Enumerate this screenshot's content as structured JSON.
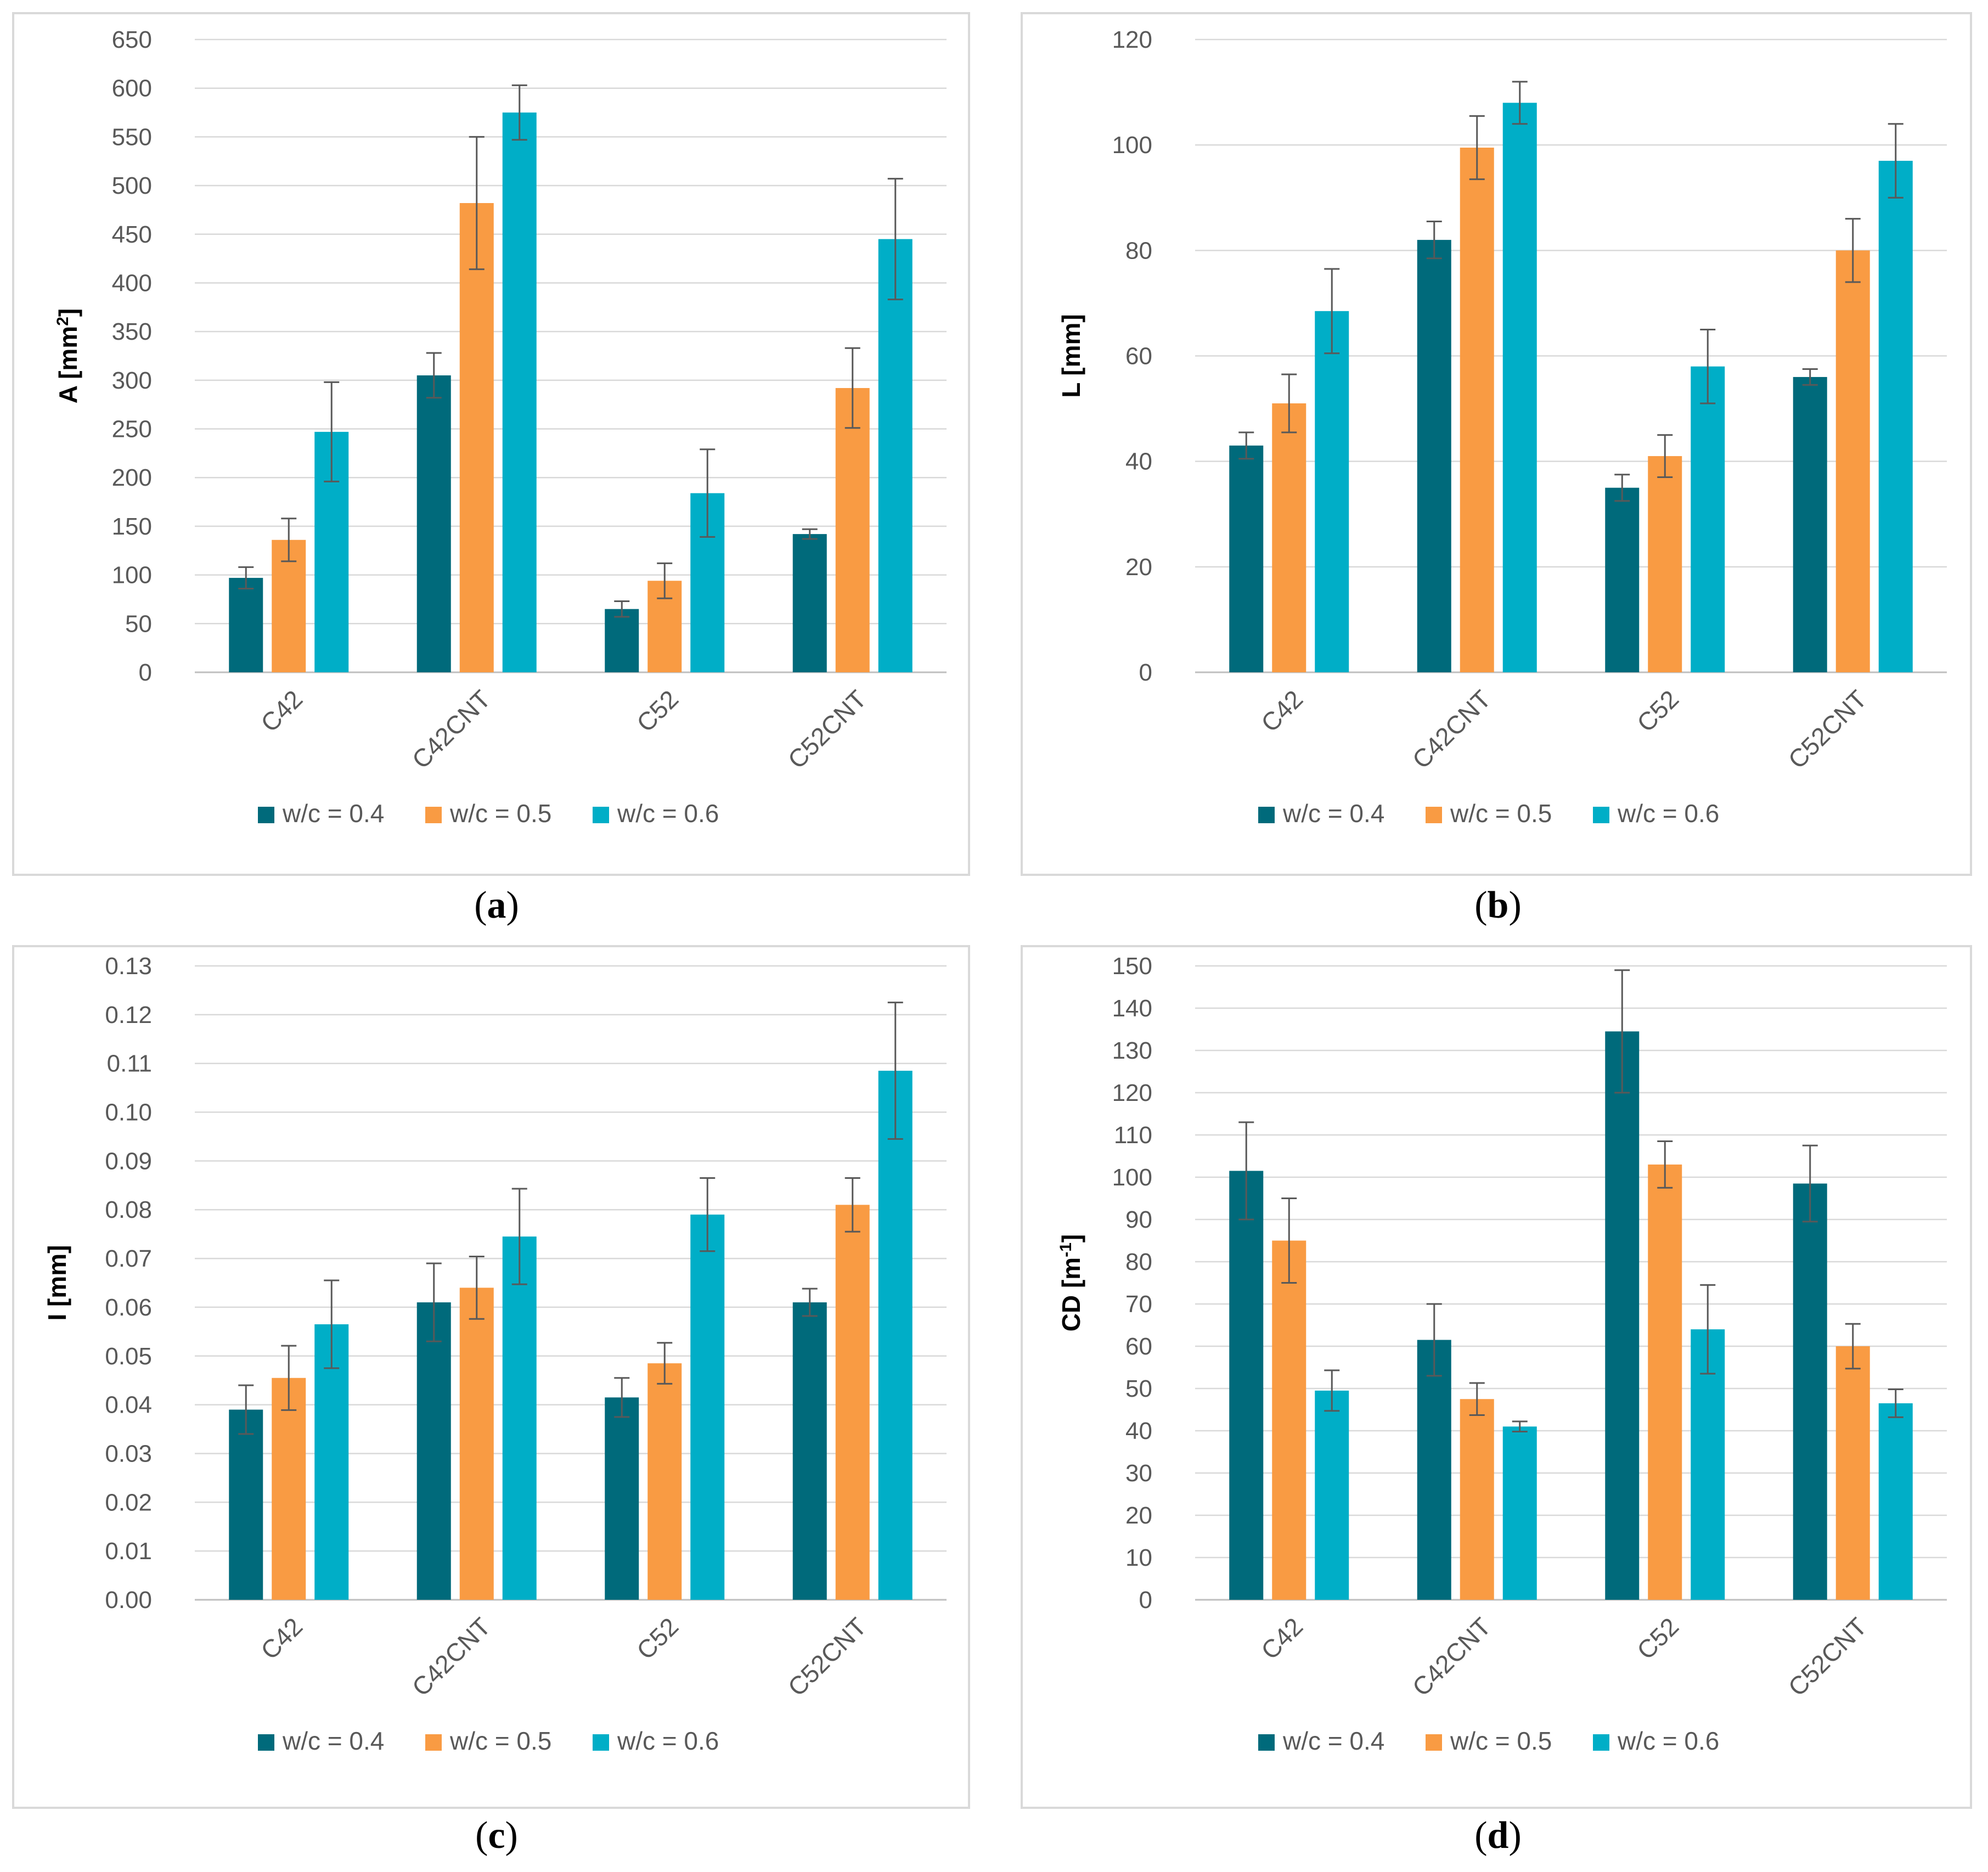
{
  "colors": {
    "wc04": "#006A7B",
    "wc05": "#F99B43",
    "wc06": "#00AEC7",
    "grid": "#D9D9D9",
    "axis_text": "#595959",
    "error_bar": "#595959",
    "frame": "#D9D9D9"
  },
  "legend": [
    "w/c = 0.4",
    "w/c = 0.5",
    "w/c = 0.6"
  ],
  "chart_data": [
    {
      "id": "a",
      "caption_letter": "a",
      "type": "bar",
      "ylabel_main": "A [mm",
      "ylabel_sup": "2",
      "ylabel_end": "]",
      "ylim": [
        0,
        650
      ],
      "tick_step": 50,
      "tick_labels": [
        "0",
        "50",
        "100",
        "150",
        "200",
        "250",
        "300",
        "350",
        "400",
        "450",
        "500",
        "550",
        "600",
        "650"
      ],
      "categories": [
        "C42",
        "C42CNT",
        "C52",
        "C52CNT"
      ],
      "series": [
        {
          "name": "w/c = 0.4",
          "values": [
            97,
            305,
            65,
            142
          ],
          "errors": [
            11,
            23,
            8,
            5
          ]
        },
        {
          "name": "w/c = 0.5",
          "values": [
            136,
            482,
            94,
            292
          ],
          "errors": [
            22,
            68,
            18,
            41
          ]
        },
        {
          "name": "w/c = 0.6",
          "values": [
            247,
            575,
            184,
            445
          ],
          "errors": [
            51,
            28,
            45,
            62
          ]
        }
      ]
    },
    {
      "id": "b",
      "caption_letter": "b",
      "type": "bar",
      "ylabel_main": "L [mm]",
      "ylabel_sup": "",
      "ylabel_end": "",
      "ylim": [
        0,
        120
      ],
      "tick_step": 20,
      "tick_labels": [
        "0",
        "20",
        "40",
        "60",
        "80",
        "100",
        "120"
      ],
      "categories": [
        "C42",
        "C42CNT",
        "C52",
        "C52CNT"
      ],
      "series": [
        {
          "name": "w/c = 0.4",
          "values": [
            43,
            82,
            35,
            56
          ],
          "errors": [
            2.5,
            3.5,
            2.5,
            1.5
          ]
        },
        {
          "name": "w/c = 0.5",
          "values": [
            51,
            99.5,
            41,
            80
          ],
          "errors": [
            5.5,
            6,
            4,
            6
          ]
        },
        {
          "name": "w/c = 0.6",
          "values": [
            68.5,
            108,
            58,
            97
          ],
          "errors": [
            8,
            4,
            7,
            7
          ]
        }
      ]
    },
    {
      "id": "c",
      "caption_letter": "c",
      "type": "bar",
      "ylabel_main": "I [mm]",
      "ylabel_sup": "",
      "ylabel_end": "",
      "ylim": [
        0,
        0.13
      ],
      "tick_step": 0.01,
      "tick_labels": [
        "0.00",
        "0.01",
        "0.02",
        "0.03",
        "0.04",
        "0.05",
        "0.06",
        "0.07",
        "0.08",
        "0.09",
        "0.10",
        "0.11",
        "0.12",
        "0.13"
      ],
      "categories": [
        "C42",
        "C42CNT",
        "C52",
        "C52CNT"
      ],
      "series": [
        {
          "name": "w/c = 0.4",
          "values": [
            0.039,
            0.061,
            0.0415,
            0.061
          ],
          "errors": [
            0.005,
            0.008,
            0.004,
            0.0028
          ]
        },
        {
          "name": "w/c = 0.5",
          "values": [
            0.0455,
            0.064,
            0.0485,
            0.081
          ],
          "errors": [
            0.0066,
            0.0064,
            0.0042,
            0.0055
          ]
        },
        {
          "name": "w/c = 0.6",
          "values": [
            0.0565,
            0.0745,
            0.079,
            0.1085
          ],
          "errors": [
            0.009,
            0.0098,
            0.0075,
            0.014
          ]
        }
      ]
    },
    {
      "id": "d",
      "caption_letter": "d",
      "type": "bar",
      "ylabel_main": "CD [m",
      "ylabel_sup": "-1",
      "ylabel_end": "]",
      "ylim": [
        0,
        150
      ],
      "tick_step": 10,
      "tick_labels": [
        "0",
        "10",
        "20",
        "30",
        "40",
        "50",
        "60",
        "70",
        "80",
        "90",
        "100",
        "110",
        "120",
        "130",
        "140",
        "150"
      ],
      "categories": [
        "C42",
        "C42CNT",
        "C52",
        "C52CNT"
      ],
      "series": [
        {
          "name": "w/c = 0.4",
          "values": [
            101.5,
            61.5,
            134.5,
            98.5
          ],
          "errors": [
            11.5,
            8.5,
            14.5,
            9
          ]
        },
        {
          "name": "w/c = 0.5",
          "values": [
            85,
            47.5,
            103,
            60
          ],
          "errors": [
            10,
            3.8,
            5.5,
            5.3
          ]
        },
        {
          "name": "w/c = 0.6",
          "values": [
            49.5,
            41,
            64,
            46.5
          ],
          "errors": [
            4.8,
            1.2,
            10.5,
            3.3
          ]
        }
      ]
    }
  ]
}
